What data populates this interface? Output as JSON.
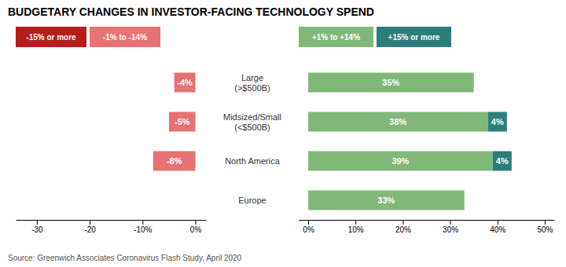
{
  "chart_data": [
    {
      "type": "bar",
      "orientation": "horizontal",
      "title": "BUDGETARY CHANGES IN INVESTOR-FACING TECHNOLOGY SPEND",
      "annotations": [
        "Source: Greenwich Associates Coronavirus Flash Study, April 2020"
      ],
      "categories": [
        "Large\n(>$500B)",
        "Midsized/Small\n(<$500B)",
        "North America",
        "Europe"
      ],
      "series": [
        {
          "name": "-15% or more",
          "color": "#b71c1c",
          "values": [
            null,
            null,
            null,
            null
          ]
        },
        {
          "name": "-1% to -14%",
          "color": "#e57373",
          "values": [
            -4,
            -5,
            -8,
            0
          ],
          "value_labels": [
            "-4%",
            "-5%",
            "-8%",
            null
          ]
        }
      ],
      "xlim": [
        -34,
        2
      ],
      "xticks": [
        -30,
        -20,
        {
          "value": -10,
          "label": "-10%"
        },
        {
          "value": 0,
          "label": "0%"
        }
      ],
      "data_labels": true,
      "grid": false,
      "legend": "top"
    },
    {
      "type": "bar",
      "orientation": "horizontal",
      "stacked": true,
      "categories": [
        "Large\n(>$500B)",
        "Midsized/Small\n(<$500B)",
        "North America",
        "Europe"
      ],
      "series": [
        {
          "name": "+1% to +14%",
          "color": "#81b87a",
          "values": [
            35,
            38,
            39,
            33
          ],
          "value_labels": [
            "35%",
            "38%",
            "39%",
            "33%"
          ]
        },
        {
          "name": "+15% or more",
          "color": "#2d7d7d",
          "values": [
            0,
            4,
            4,
            0
          ],
          "value_labels": [
            null,
            "4%",
            "4%",
            null
          ]
        }
      ],
      "xlim": [
        -2,
        52
      ],
      "xticks": [
        {
          "value": 0,
          "label": "0%"
        },
        {
          "value": 10,
          "label": "10%"
        },
        {
          "value": 20,
          "label": "20%"
        },
        {
          "value": 30,
          "label": "30%"
        },
        {
          "value": 40,
          "label": "40%"
        },
        {
          "value": 50,
          "label": "50%"
        }
      ],
      "data_labels": true,
      "grid": false,
      "legend": "top"
    }
  ]
}
